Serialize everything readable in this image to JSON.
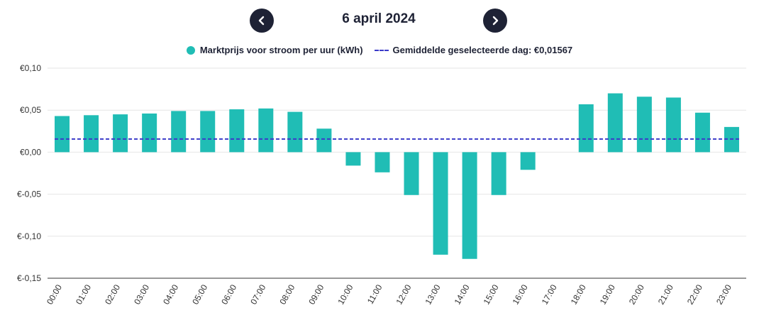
{
  "header": {
    "date_label": "6 april 2024",
    "prev_icon": "chevron-left-icon",
    "next_icon": "chevron-right-icon",
    "button_color": "#1e2235"
  },
  "legend": {
    "series_label": "Marktprijs voor stroom per uur (kWh)",
    "average_label": "Gemiddelde geselecteerde dag: €0,01567",
    "series_color": "#20bdb5",
    "average_color": "#3b3bc9"
  },
  "chart_data": {
    "type": "bar",
    "categories": [
      "00:00",
      "01:00",
      "02:00",
      "03:00",
      "04:00",
      "05:00",
      "06:00",
      "07:00",
      "08:00",
      "09:00",
      "10:00",
      "11:00",
      "12:00",
      "13:00",
      "14:00",
      "15:00",
      "16:00",
      "17:00",
      "18:00",
      "19:00",
      "20:00",
      "21:00",
      "22:00",
      "23:00"
    ],
    "series": [
      {
        "name": "Marktprijs voor stroom per uur (kWh)",
        "values": [
          0.043,
          0.044,
          0.045,
          0.046,
          0.049,
          0.049,
          0.051,
          0.052,
          0.048,
          0.028,
          -0.016,
          -0.024,
          -0.051,
          -0.122,
          -0.127,
          -0.051,
          -0.021,
          0.0,
          0.057,
          0.07,
          0.066,
          0.065,
          0.047,
          0.03
        ]
      }
    ],
    "average": 0.01567,
    "ylim": [
      -0.15,
      0.1
    ],
    "yticks": [
      0.1,
      0.05,
      0.0,
      -0.05,
      -0.1,
      -0.15
    ],
    "ytick_labels": [
      "€0,10",
      "€0,05",
      "€0,00",
      "€-0,05",
      "€-0,10",
      "€-0,15"
    ],
    "grid": true,
    "legend_position": "top-center"
  }
}
